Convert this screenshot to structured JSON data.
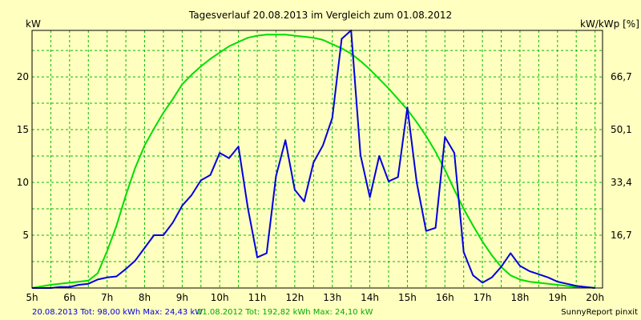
{
  "title": "Tagesverlauf 20.08.2013 im Vergleich zum 01.08.2012",
  "left_unit": "kW",
  "right_unit": "kW/kWp [%]",
  "footer": {
    "series1_text": "20.08.2013 Tot: 98,00 kWh Max: 24,43 kW",
    "series2_text": "01.08.2012 Tot: 192,82 kWh Max: 24,10 kW",
    "brand": "SunnyReport pinxit"
  },
  "chart_data": {
    "type": "line",
    "title": "Tagesverlauf 20.08.2013 im Vergleich zum 01.08.2012",
    "ylabel": "kW",
    "y2label": "kW/kWp [%]",
    "xlim": [
      5,
      20.2
    ],
    "ylim": [
      0,
      24.4
    ],
    "x_ticks": [
      5,
      6,
      7,
      8,
      9,
      10,
      11,
      12,
      13,
      14,
      15,
      16,
      17,
      18,
      19,
      20
    ],
    "x_tick_labels": [
      "5h",
      "6h",
      "7h",
      "8h",
      "9h",
      "10h",
      "11h",
      "12h",
      "13h",
      "14h",
      "15h",
      "16h",
      "17h",
      "18h",
      "19h",
      "20h"
    ],
    "y_ticks": [
      5,
      10,
      15,
      20
    ],
    "y_tick_labels": [
      "5",
      "10",
      "15",
      "20"
    ],
    "y2_ticks": [
      16.7,
      33.4,
      50.1,
      66.7
    ],
    "y2_tick_labels": [
      "16,7",
      "33,4",
      "50,1",
      "66,7"
    ],
    "y2_per_y": 3.336,
    "grid": true,
    "series": [
      {
        "name": "20.08.2013",
        "color": "#0000DD",
        "x": [
          5.0,
          5.5,
          5.75,
          6.0,
          6.25,
          6.5,
          6.75,
          7.0,
          7.25,
          7.5,
          7.75,
          8.0,
          8.25,
          8.5,
          8.75,
          9.0,
          9.25,
          9.5,
          9.75,
          10.0,
          10.25,
          10.5,
          10.75,
          11.0,
          11.25,
          11.5,
          11.75,
          12.0,
          12.25,
          12.5,
          12.75,
          13.0,
          13.25,
          13.5,
          13.75,
          14.0,
          14.25,
          14.5,
          14.75,
          15.0,
          15.25,
          15.5,
          15.75,
          16.0,
          16.25,
          16.5,
          16.75,
          17.0,
          17.25,
          17.5,
          17.75,
          18.0,
          18.25,
          18.5,
          18.75,
          19.0,
          19.25,
          19.5,
          19.75,
          20.0
        ],
        "y": [
          0.0,
          0.0,
          0.1,
          0.1,
          0.3,
          0.4,
          0.8,
          1.0,
          1.1,
          1.8,
          2.6,
          3.8,
          5.0,
          5.0,
          6.2,
          7.8,
          8.8,
          10.2,
          10.7,
          12.8,
          12.3,
          13.4,
          7.6,
          2.9,
          3.3,
          10.6,
          14.0,
          9.3,
          8.2,
          11.9,
          13.5,
          16.1,
          23.6,
          24.4,
          12.6,
          8.6,
          12.5,
          10.1,
          10.5,
          17.1,
          10.0,
          5.4,
          5.7,
          14.3,
          12.8,
          3.4,
          1.2,
          0.5,
          1.0,
          2.0,
          3.3,
          2.1,
          1.6,
          1.3,
          1.0,
          0.6,
          0.4,
          0.2,
          0.1,
          0.0
        ]
      },
      {
        "name": "01.08.2012",
        "color": "#00DD00",
        "x": [
          5.0,
          5.5,
          6.0,
          6.25,
          6.5,
          6.75,
          7.0,
          7.25,
          7.5,
          7.75,
          8.0,
          8.25,
          8.5,
          8.75,
          9.0,
          9.25,
          9.5,
          9.75,
          10.0,
          10.25,
          10.5,
          10.75,
          11.0,
          11.25,
          11.5,
          11.75,
          12.0,
          12.25,
          12.5,
          12.75,
          13.0,
          13.25,
          13.5,
          13.75,
          14.0,
          14.25,
          14.5,
          14.75,
          15.0,
          15.25,
          15.5,
          15.75,
          16.0,
          16.25,
          16.5,
          16.75,
          17.0,
          17.25,
          17.5,
          17.75,
          18.0,
          18.25,
          18.5,
          18.75,
          19.0,
          19.25,
          19.5,
          19.75,
          20.0
        ],
        "y": [
          0.0,
          0.3,
          0.5,
          0.6,
          0.7,
          1.4,
          3.5,
          5.9,
          8.8,
          11.4,
          13.5,
          15.1,
          16.6,
          17.9,
          19.3,
          20.2,
          21.0,
          21.7,
          22.3,
          22.9,
          23.3,
          23.7,
          23.9,
          24.0,
          24.0,
          24.0,
          23.9,
          23.8,
          23.7,
          23.5,
          23.1,
          22.7,
          22.2,
          21.5,
          20.7,
          19.8,
          18.9,
          17.9,
          16.9,
          15.7,
          14.4,
          12.9,
          11.2,
          9.3,
          7.5,
          5.9,
          4.4,
          3.1,
          2.0,
          1.2,
          0.8,
          0.6,
          0.5,
          0.4,
          0.3,
          0.2,
          0.1,
          0.1,
          0.0
        ]
      }
    ]
  }
}
